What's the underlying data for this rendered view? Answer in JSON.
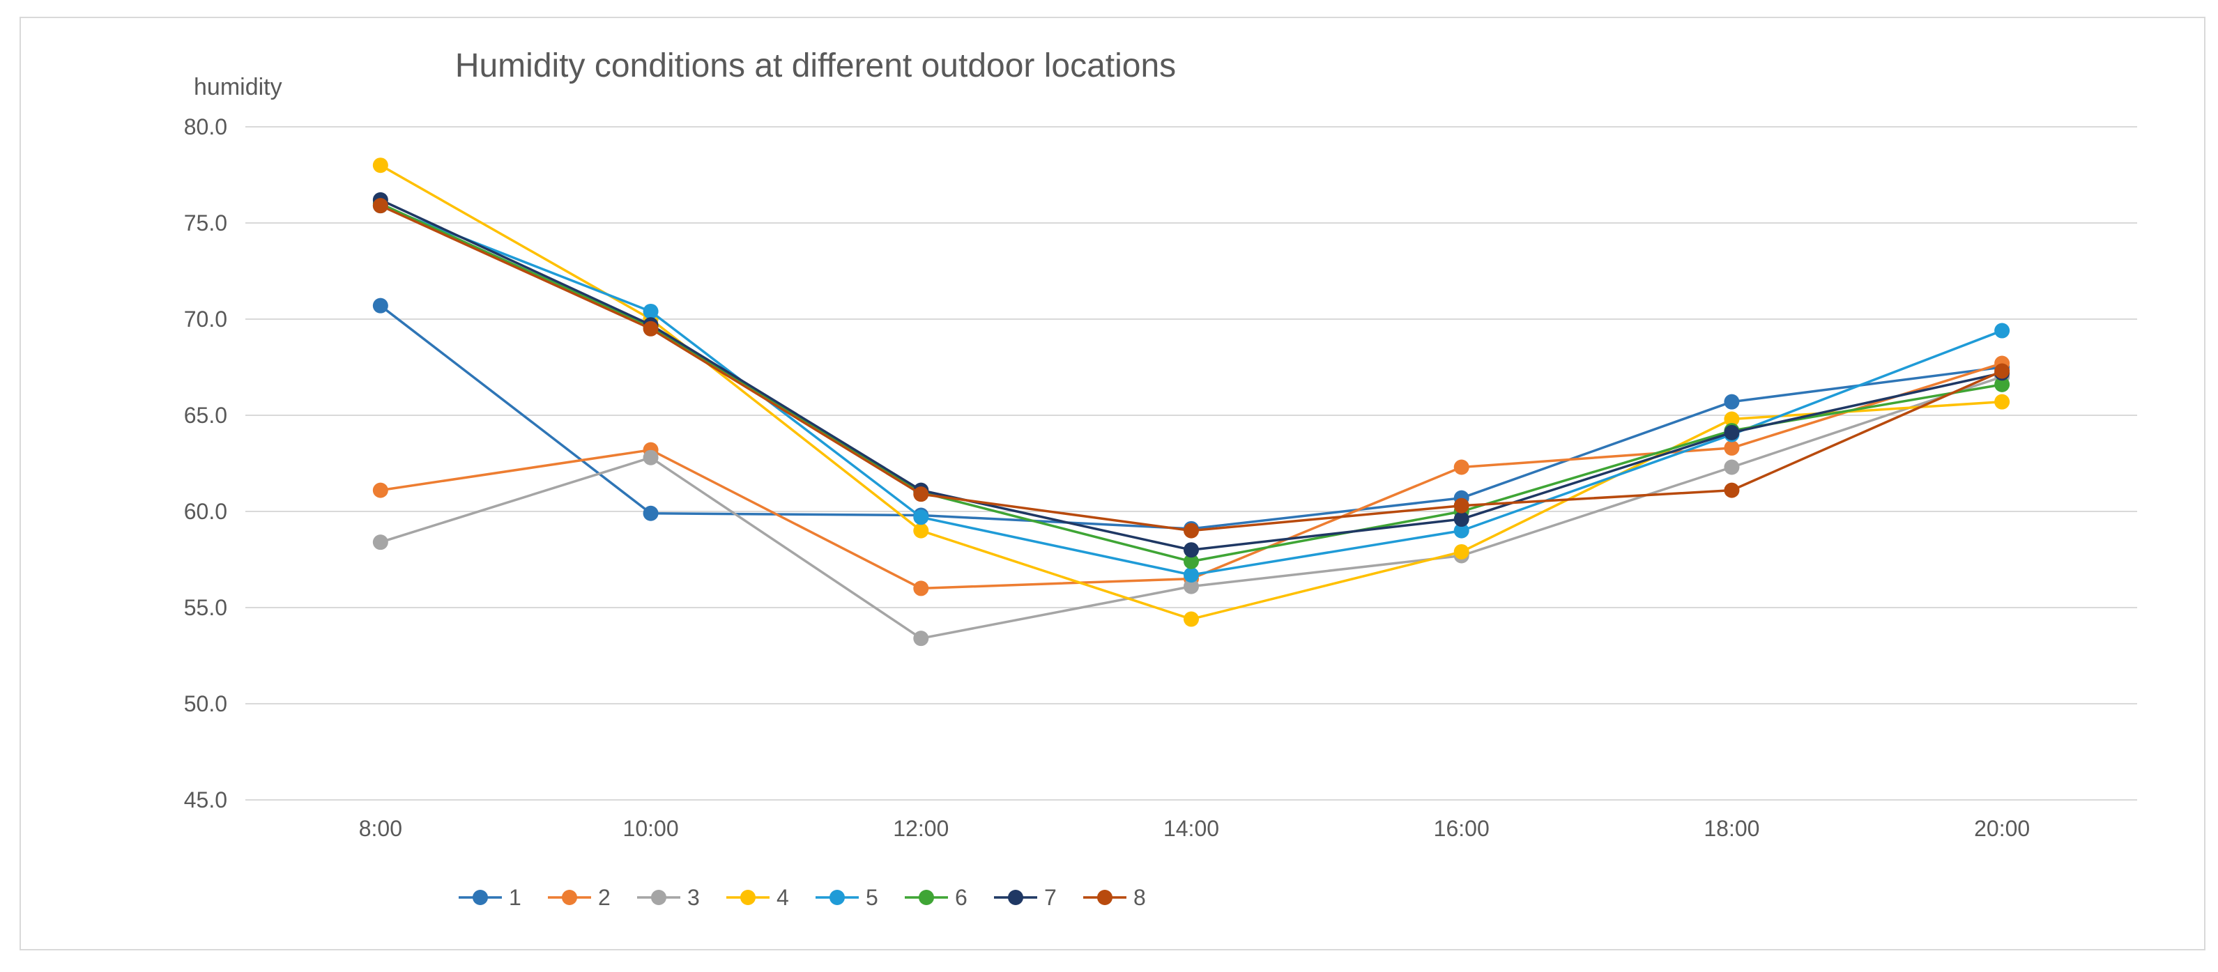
{
  "chart_data": {
    "type": "line",
    "title": "Humidity conditions at different outdoor locations",
    "xlabel": "",
    "ylabel": "humidity",
    "categories": [
      "8:00",
      "10:00",
      "12:00",
      "14:00",
      "16:00",
      "18:00",
      "20:00"
    ],
    "ylim": [
      45,
      80
    ],
    "yticks": [
      "45.0",
      "50.0",
      "55.0",
      "60.0",
      "65.0",
      "70.0",
      "75.0",
      "80.0"
    ],
    "grid": true,
    "legend_position": "bottom",
    "series": [
      {
        "name": "1",
        "color": "#2E75B6",
        "values": [
          70.7,
          59.9,
          59.8,
          59.1,
          60.7,
          65.7,
          67.5
        ]
      },
      {
        "name": "2",
        "color": "#ED7D31",
        "values": [
          61.1,
          63.2,
          56.0,
          56.5,
          62.3,
          63.3,
          67.7
        ]
      },
      {
        "name": "3",
        "color": "#A5A5A5",
        "values": [
          58.4,
          62.8,
          53.4,
          56.1,
          57.7,
          62.3,
          67.0
        ]
      },
      {
        "name": "4",
        "color": "#FFC000",
        "values": [
          78.0,
          70.0,
          59.0,
          54.4,
          57.9,
          64.8,
          65.7
        ]
      },
      {
        "name": "5",
        "color": "#1F9BD7",
        "values": [
          75.9,
          70.4,
          59.7,
          56.7,
          59.0,
          64.0,
          69.4
        ]
      },
      {
        "name": "6",
        "color": "#3FA535",
        "values": [
          76.0,
          69.6,
          61.0,
          57.4,
          60.0,
          64.2,
          66.6
        ]
      },
      {
        "name": "7",
        "color": "#1F3864",
        "values": [
          76.2,
          69.7,
          61.1,
          58.0,
          59.6,
          64.1,
          67.2
        ]
      },
      {
        "name": "8",
        "color": "#B84A0D",
        "values": [
          75.9,
          69.5,
          60.9,
          59.0,
          60.3,
          61.1,
          67.3
        ]
      }
    ]
  }
}
